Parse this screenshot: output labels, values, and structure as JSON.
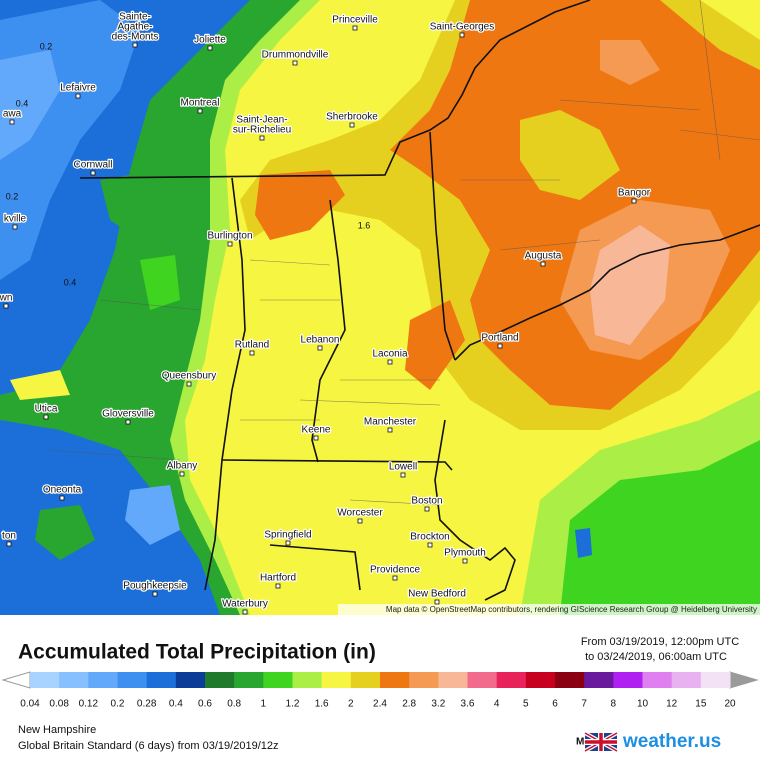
{
  "map": {
    "cities": [
      {
        "label": [
          "Princeville"
        ]
      },
      {
        "label": [
          "Saint-Georges"
        ]
      },
      {
        "label": [
          "Sainte-",
          "Agathe-",
          "des-Monts"
        ]
      },
      {
        "label": [
          "Joliette"
        ]
      },
      {
        "label": [
          "Drummondville"
        ]
      },
      {
        "label": [
          "Lefaivre"
        ]
      },
      {
        "label": [
          "Montreal"
        ]
      },
      {
        "label": [
          "Saint-Jean-",
          "sur-Richelieu"
        ]
      },
      {
        "label": [
          "Sherbrooke"
        ]
      },
      {
        "label": [
          "awa"
        ]
      },
      {
        "label": [
          "Cornwall"
        ]
      },
      {
        "label": [
          "kville"
        ]
      },
      {
        "label": [
          "Burlington"
        ]
      },
      {
        "label": [
          "Bangor"
        ]
      },
      {
        "label": [
          "Augusta"
        ]
      },
      {
        "label": [
          "wn"
        ]
      },
      {
        "label": [
          "Portland"
        ]
      },
      {
        "label": [
          "Rutland"
        ]
      },
      {
        "label": [
          "Lebanon"
        ]
      },
      {
        "label": [
          "Laconia"
        ]
      },
      {
        "label": [
          "Queensbury"
        ]
      },
      {
        "label": [
          "Utica"
        ]
      },
      {
        "label": [
          "Gloversville"
        ]
      },
      {
        "label": [
          "Keene"
        ]
      },
      {
        "label": [
          "Manchester"
        ]
      },
      {
        "label": [
          "Albany"
        ]
      },
      {
        "label": [
          "Lowell"
        ]
      },
      {
        "label": [
          "Oneonta"
        ]
      },
      {
        "label": [
          "Boston"
        ]
      },
      {
        "label": [
          "Worcester"
        ]
      },
      {
        "label": [
          "ton"
        ]
      },
      {
        "label": [
          "Springfield"
        ]
      },
      {
        "label": [
          "Brockton"
        ]
      },
      {
        "label": [
          "Plymouth"
        ]
      },
      {
        "label": [
          "Providence"
        ]
      },
      {
        "label": [
          "Hartford"
        ]
      },
      {
        "label": [
          "Poughkeepsie"
        ]
      },
      {
        "label": [
          "New Bedford"
        ]
      },
      {
        "label": [
          "Waterbury"
        ]
      }
    ],
    "contour_labels": [
      "0.2",
      "0.4",
      "0.2",
      "0.4",
      "1.6"
    ],
    "attribution": "Map data © OpenStreetMap contributors, rendering GIScience Research Group @ Heidelberg University"
  },
  "header": {
    "title": "Accumulated Total Precipitation (in)",
    "from": "From 03/19/2019, 12:00pm UTC",
    "to": "to 03/24/2019, 06:00am UTC"
  },
  "legend": {
    "ticks": [
      0.04,
      0.08,
      0.12,
      0.2,
      0.28,
      0.4,
      0.6,
      0.8,
      1,
      1.2,
      1.6,
      2,
      2.4,
      2.8,
      3.2,
      3.6,
      4,
      5,
      6,
      7,
      8,
      10,
      12,
      15,
      20
    ],
    "colors": [
      "#a8d2ff",
      "#86c0ff",
      "#62a9fb",
      "#3e90f0",
      "#1c6fd8",
      "#0b3d98",
      "#1f7a2c",
      "#29a62f",
      "#3fd41f",
      "#aaee46",
      "#f5f542",
      "#e6d01f",
      "#ef7712",
      "#f59a52",
      "#f8b898",
      "#f26a8c",
      "#e8235c",
      "#c6001e",
      "#8a0012",
      "#6a1a9c",
      "#b020f0",
      "#e07ff0",
      "#e8b2f0",
      "#f3e2f6"
    ],
    "below_color": "#ffffff",
    "above_color": "#9a9a9a"
  },
  "footer": {
    "location": "New Hampshire",
    "model_run": "Global Britain Standard (6 days) from 03/19/2019/12z",
    "model_label": "Model:",
    "brand": "weather.us"
  }
}
